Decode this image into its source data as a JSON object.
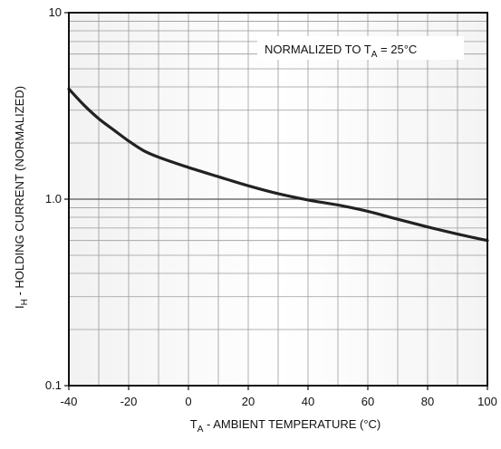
{
  "chart_data": {
    "type": "line",
    "title": "",
    "annotation": {
      "prefix": "NORMALIZED TO T",
      "subscript": "A",
      "suffix": " = 25°C"
    },
    "xlabel": {
      "main": "T",
      "subscript": "A",
      "rest": " - AMBIENT TEMPERATURE (°C)"
    },
    "ylabel": {
      "main": "I",
      "subscript": "H",
      "rest": " - HOLDING CURRENT (NORMALIZED)"
    },
    "xlim": [
      -40,
      100
    ],
    "ylim": [
      0.1,
      10
    ],
    "yscale": "log",
    "x_ticks": [
      "-40",
      "-20",
      "0",
      "20",
      "40",
      "60",
      "80",
      "100"
    ],
    "y_ticks": [
      "0.1",
      "1.0",
      "10"
    ],
    "grid": true,
    "line_color": "#222222",
    "series": [
      {
        "x": [
          -40,
          -35,
          -30,
          -25,
          -20,
          -15,
          -10,
          0,
          10,
          20,
          30,
          40,
          50,
          60,
          70,
          80,
          90,
          100
        ],
        "y": [
          3.9,
          3.2,
          2.7,
          2.35,
          2.05,
          1.82,
          1.68,
          1.48,
          1.32,
          1.18,
          1.07,
          0.99,
          0.93,
          0.86,
          0.78,
          0.71,
          0.65,
          0.6
        ]
      }
    ]
  }
}
